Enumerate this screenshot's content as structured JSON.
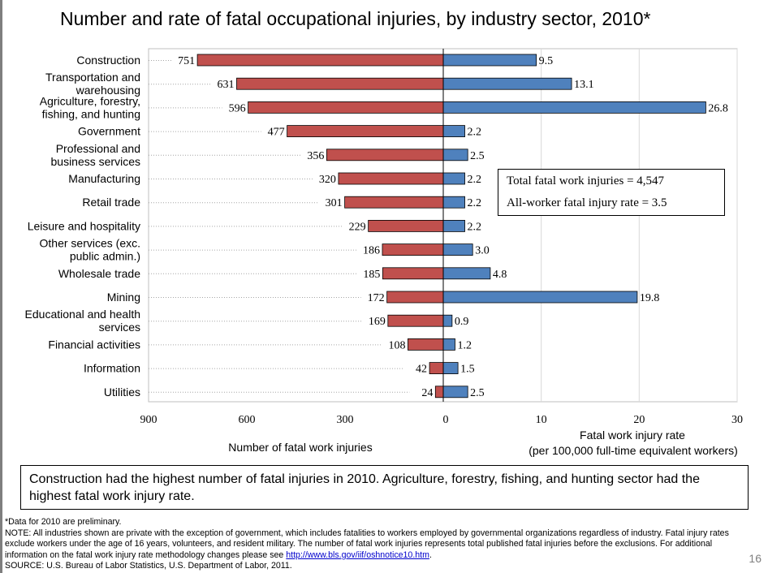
{
  "slide": {
    "title": "Number and rate of fatal occupational injuries, by industry sector, 2010*",
    "page_number": "16"
  },
  "summary_box": {
    "line1": "Total fatal work injuries = 4,547",
    "line2": "All-worker fatal injury rate = 3.5"
  },
  "callout": {
    "text": "Construction had the highest number of fatal injuries in 2010.  Agriculture, forestry, fishing, and hunting sector had the highest fatal work injury rate."
  },
  "notes": {
    "line1": "*Data for 2010 are preliminary.",
    "line2": "NOTE: All industries shown are private with the exception of government, which includes fatalities to workers employed by governmental organizations regardless of industry. Fatal injury rates exclude workers under the age of 16 years, volunteers, and resident military. The number of fatal work injuries represents total published fatal injuries before the exclusions. For additional information on the fatal work injury rate methodology changes please see",
    "link": "http://www.bls.gov/iif/oshnotice10.htm",
    "line2_end": ".",
    "source": "SOURCE: U.S. Bureau of Labor Statistics, U.S. Department of Labor, 2011."
  },
  "colors": {
    "count_bar": "#c0504d",
    "rate_bar": "#4f81bd"
  },
  "chart_data": {
    "type": "bar",
    "orientation": "horizontal-butterfly",
    "categories": [
      [
        "Construction"
      ],
      [
        "Transportation and",
        "warehousing"
      ],
      [
        "Agriculture, forestry,",
        "fishing, and hunting"
      ],
      [
        "Government"
      ],
      [
        "Professional and",
        "business services"
      ],
      [
        "Manufacturing"
      ],
      [
        "Retail trade"
      ],
      [
        "Leisure and hospitality"
      ],
      [
        "Other services (exc.",
        "public admin.)"
      ],
      [
        "Wholesale trade"
      ],
      [
        "Mining"
      ],
      [
        "Educational and health",
        "services"
      ],
      [
        "Financial activities"
      ],
      [
        "Information"
      ],
      [
        "Utilities"
      ]
    ],
    "series": [
      {
        "name": "Number of fatal work injuries",
        "values": [
          751,
          631,
          596,
          477,
          356,
          320,
          301,
          229,
          186,
          185,
          172,
          169,
          108,
          42,
          24
        ],
        "labels": [
          "751",
          "631",
          "596",
          "477",
          "356",
          "320",
          "301",
          "229",
          "186",
          "185",
          "172",
          "169",
          "108",
          "42",
          "24"
        ]
      },
      {
        "name": "Fatal work injury rate",
        "values": [
          9.5,
          13.1,
          26.8,
          2.2,
          2.5,
          2.2,
          2.2,
          2.2,
          3.0,
          4.8,
          19.8,
          0.9,
          1.2,
          1.5,
          2.5
        ],
        "labels": [
          "9.5",
          "13.1",
          "26.8",
          "2.2",
          "2.5",
          "2.2",
          "2.2",
          "2.2",
          "3.0",
          "4.8",
          "19.8",
          "0.9",
          "1.2",
          "1.5",
          "2.5"
        ]
      }
    ],
    "left_axis": {
      "range": [
        0,
        900
      ],
      "ticks": [
        900,
        600,
        300,
        0
      ],
      "label": "Number of fatal work injuries"
    },
    "right_axis": {
      "range": [
        0,
        30
      ],
      "ticks": [
        10,
        20,
        30
      ],
      "label_line1": "Fatal work injury rate",
      "label_line2": "(per 100,000 full-time equivalent workers)"
    },
    "legend": "none"
  }
}
